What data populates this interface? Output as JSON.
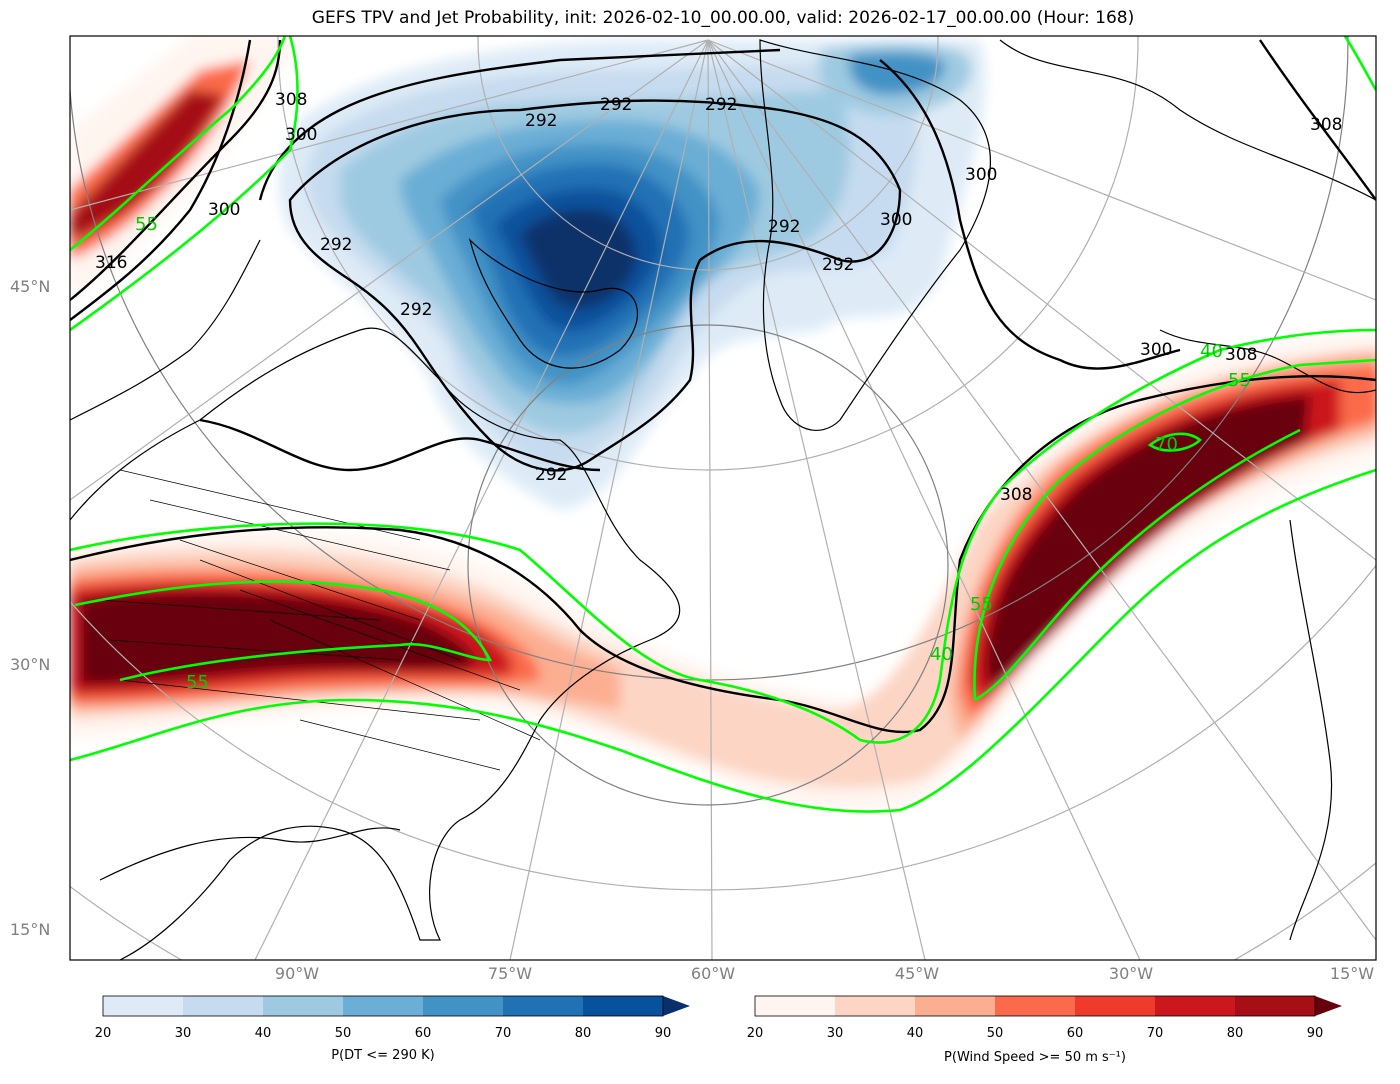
{
  "title": "GEFS TPV and Jet Probability, init: 2026-02-10_00.00.00, valid: 2026-02-17_00.00.00 (Hour: 168)",
  "lat_labels": [
    "45°N",
    "30°N",
    "15°N"
  ],
  "lon_labels": [
    "90°W",
    "75°W",
    "60°W",
    "45°W",
    "30°W",
    "15°W"
  ],
  "contour_labels": {
    "theta": [
      "292",
      "292",
      "292",
      "292",
      "292",
      "292",
      "292",
      "292",
      "300",
      "300",
      "300",
      "300",
      "300",
      "308",
      "308",
      "308",
      "308",
      "316"
    ],
    "jet": [
      "55",
      "55",
      "55",
      "55",
      "40",
      "40",
      "70"
    ]
  },
  "colorbars": [
    {
      "label": "P(DT <= 290 K)",
      "ticks": [
        "20",
        "30",
        "40",
        "50",
        "60",
        "70",
        "80",
        "90"
      ],
      "colors": [
        "#deebf7",
        "#c6dbef",
        "#9ecae1",
        "#6baed6",
        "#4292c6",
        "#2171b5",
        "#08519c",
        "#08306b"
      ]
    },
    {
      "label": "P(Wind Speed >= 50 m s⁻¹)",
      "ticks": [
        "20",
        "30",
        "40",
        "50",
        "60",
        "70",
        "80",
        "90"
      ],
      "colors": [
        "#fff5f0",
        "#fcd5c4",
        "#fcae91",
        "#fb6a4a",
        "#ef3b2c",
        "#cb181d",
        "#a50f15",
        "#67000d"
      ]
    }
  ],
  "colors": {
    "tpv": "#2171b5",
    "jet": "#cb181d",
    "jet_contour": "#00ff00",
    "theta_contour": "#000000",
    "grid": "#b0b0b0"
  }
}
